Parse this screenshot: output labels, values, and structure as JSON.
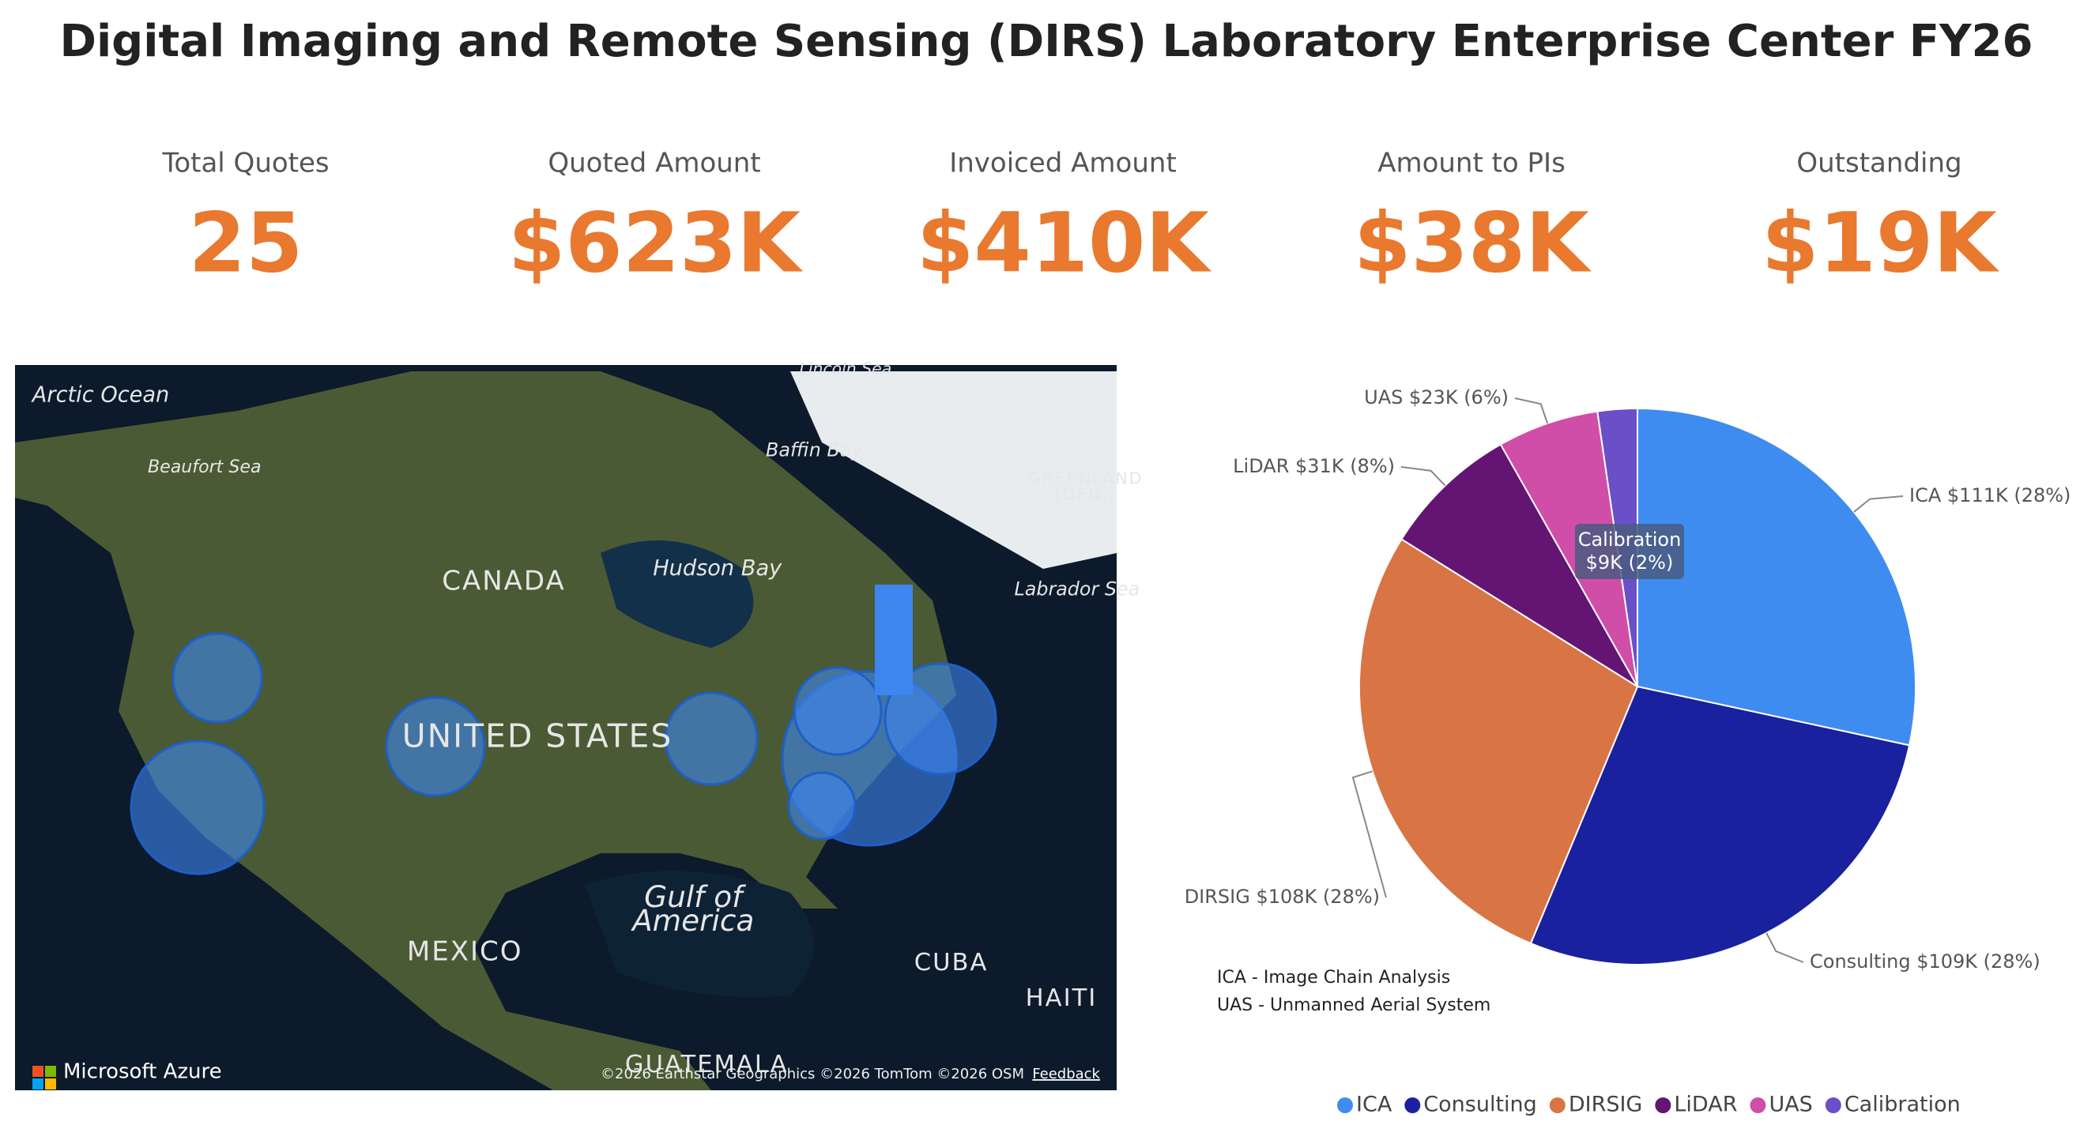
{
  "header": {
    "title": "Digital Imaging and Remote Sensing (DIRS) Laboratory Enterprise Center FY26"
  },
  "kpis": [
    {
      "label": "Total Quotes",
      "value": "25"
    },
    {
      "label": "Quoted Amount",
      "value": "$623K"
    },
    {
      "label": "Invoiced Amount",
      "value": "$410K"
    },
    {
      "label": "Amount to PIs",
      "value": "$38K"
    },
    {
      "label": "Outstanding",
      "value": "$19K"
    }
  ],
  "map": {
    "labels": [
      "Arctic Ocean",
      "Beaufort Sea",
      "Lincoln Sea",
      "Baffin Bay",
      "GREENLAND",
      "(DEN.)",
      "CANADA",
      "Hudson Bay",
      "Labrador Sea",
      "UNITED STATES",
      "Gulf of",
      "America",
      "MEXICO",
      "CUBA",
      "HAITI",
      "GUATEMALA"
    ],
    "brand": "Microsoft Azure",
    "attribution": "©2026 Earthstar Geographics  ©2026 TomTom  ©2026 OSM",
    "feedback": "Feedback"
  },
  "chart_data": {
    "type": "pie",
    "categories": [
      "ICA",
      "Consulting",
      "DIRSIG",
      "LiDAR",
      "UAS",
      "Calibration"
    ],
    "values": [
      111,
      109,
      108,
      31,
      23,
      9
    ],
    "value_labels": [
      "$111K (28%)",
      "$109K (28%)",
      "$108K (28%)",
      "$31K (8%)",
      "$23K (6%)",
      "$9K (2%)"
    ],
    "colors": [
      "#3f8cf0",
      "#1a219f",
      "#d97445",
      "#641574",
      "#d14ea8",
      "#6b4fc8"
    ],
    "notes": [
      "ICA - Image Chain Analysis",
      "UAS - Unmanned Aerial System"
    ],
    "legend": "bottom"
  }
}
